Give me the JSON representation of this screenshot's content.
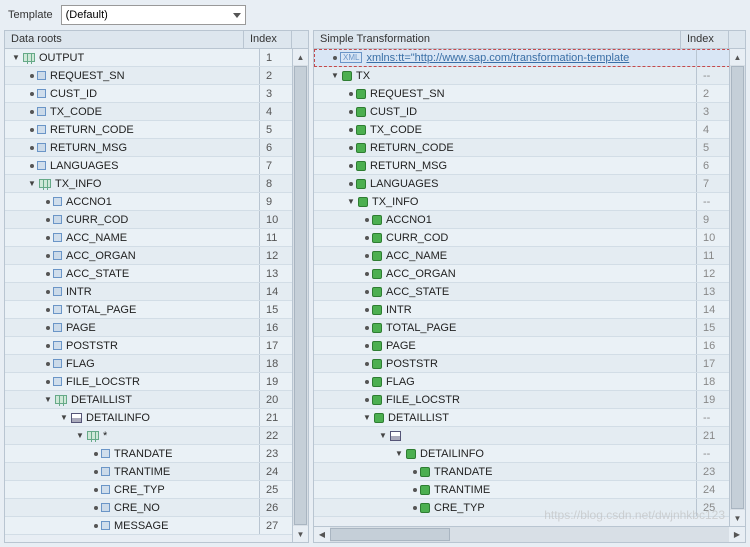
{
  "toolbar": {
    "template_label": "Template",
    "template_value": "(Default)"
  },
  "leftPanel": {
    "header_name": "Data roots",
    "header_index": "Index",
    "rows": [
      {
        "d": 0,
        "t": "▼",
        "i": "link",
        "l": "OUTPUT",
        "x": "1"
      },
      {
        "d": 1,
        "b": 1,
        "i": "sq",
        "c": "#6a95c7",
        "l": "REQUEST_SN",
        "x": "2"
      },
      {
        "d": 1,
        "b": 1,
        "i": "sq",
        "c": "#6a95c7",
        "l": "CUST_ID",
        "x": "3"
      },
      {
        "d": 1,
        "b": 1,
        "i": "sq",
        "c": "#6a95c7",
        "l": "TX_CODE",
        "x": "4"
      },
      {
        "d": 1,
        "b": 1,
        "i": "sq",
        "c": "#6a95c7",
        "l": "RETURN_CODE",
        "x": "5"
      },
      {
        "d": 1,
        "b": 1,
        "i": "sq",
        "c": "#6a95c7",
        "l": "RETURN_MSG",
        "x": "6"
      },
      {
        "d": 1,
        "b": 1,
        "i": "sq",
        "c": "#6a95c7",
        "l": "LANGUAGES",
        "x": "7"
      },
      {
        "d": 1,
        "t": "▼",
        "i": "link",
        "l": "TX_INFO",
        "x": "8"
      },
      {
        "d": 2,
        "b": 1,
        "i": "sq",
        "c": "#6a95c7",
        "l": "ACCNO1",
        "x": "9"
      },
      {
        "d": 2,
        "b": 1,
        "i": "sq",
        "c": "#6a95c7",
        "l": "CURR_COD",
        "x": "10"
      },
      {
        "d": 2,
        "b": 1,
        "i": "sq",
        "c": "#6a95c7",
        "l": "ACC_NAME",
        "x": "11"
      },
      {
        "d": 2,
        "b": 1,
        "i": "sq",
        "c": "#6a95c7",
        "l": "ACC_ORGAN",
        "x": "12"
      },
      {
        "d": 2,
        "b": 1,
        "i": "sq",
        "c": "#6a95c7",
        "l": "ACC_STATE",
        "x": "13"
      },
      {
        "d": 2,
        "b": 1,
        "i": "sq",
        "c": "#6a95c7",
        "l": "INTR",
        "x": "14"
      },
      {
        "d": 2,
        "b": 1,
        "i": "sq",
        "c": "#6a95c7",
        "l": "TOTAL_PAGE",
        "x": "15"
      },
      {
        "d": 2,
        "b": 1,
        "i": "sq",
        "c": "#6a95c7",
        "l": "PAGE",
        "x": "16"
      },
      {
        "d": 2,
        "b": 1,
        "i": "sq",
        "c": "#6a95c7",
        "l": "POSTSTR",
        "x": "17"
      },
      {
        "d": 2,
        "b": 1,
        "i": "sq",
        "c": "#6a95c7",
        "l": "FLAG",
        "x": "18"
      },
      {
        "d": 2,
        "b": 1,
        "i": "sq",
        "c": "#6a95c7",
        "l": "FILE_LOCSTR",
        "x": "19"
      },
      {
        "d": 2,
        "t": "▼",
        "i": "link",
        "l": "DETAILLIST",
        "x": "20"
      },
      {
        "d": 3,
        "t": "▼",
        "i": "table",
        "l": "DETAILINFO",
        "x": "21"
      },
      {
        "d": 4,
        "t": "▼",
        "i": "link",
        "l": "*",
        "x": "22"
      },
      {
        "d": 5,
        "b": 1,
        "i": "sq",
        "c": "#6a95c7",
        "l": "TRANDATE",
        "x": "23"
      },
      {
        "d": 5,
        "b": 1,
        "i": "sq",
        "c": "#6a95c7",
        "l": "TRANTIME",
        "x": "24"
      },
      {
        "d": 5,
        "b": 1,
        "i": "sq",
        "c": "#6a95c7",
        "l": "CRE_TYP",
        "x": "25"
      },
      {
        "d": 5,
        "b": 1,
        "i": "sq",
        "c": "#6a95c7",
        "l": "CRE_NO",
        "x": "26"
      },
      {
        "d": 5,
        "b": 1,
        "i": "sq",
        "c": "#6a95c7",
        "l": "MESSAGE",
        "x": "27"
      }
    ]
  },
  "rightPanel": {
    "header_name": "Simple Transformation",
    "header_index": "Index",
    "rows": [
      {
        "d": 0,
        "b": 1,
        "i": "xml",
        "l": "xmlns:tt=\"http://www.sap.com/transformation-template",
        "sel": 1,
        "x": ""
      },
      {
        "d": 0,
        "t": "▼",
        "i": "green",
        "l": "TX",
        "x": "--"
      },
      {
        "d": 1,
        "b": 1,
        "i": "green",
        "l": "REQUEST_SN",
        "x": "2"
      },
      {
        "d": 1,
        "b": 1,
        "i": "green",
        "l": "CUST_ID",
        "x": "3"
      },
      {
        "d": 1,
        "b": 1,
        "i": "green",
        "l": "TX_CODE",
        "x": "4"
      },
      {
        "d": 1,
        "b": 1,
        "i": "green",
        "l": "RETURN_CODE",
        "x": "5"
      },
      {
        "d": 1,
        "b": 1,
        "i": "green",
        "l": "RETURN_MSG",
        "x": "6"
      },
      {
        "d": 1,
        "b": 1,
        "i": "green",
        "l": "LANGUAGES",
        "x": "7"
      },
      {
        "d": 1,
        "t": "▼",
        "i": "green",
        "l": "TX_INFO",
        "x": "--"
      },
      {
        "d": 2,
        "b": 1,
        "i": "green",
        "l": "ACCNO1",
        "x": "9"
      },
      {
        "d": 2,
        "b": 1,
        "i": "green",
        "l": "CURR_COD",
        "x": "10"
      },
      {
        "d": 2,
        "b": 1,
        "i": "green",
        "l": "ACC_NAME",
        "x": "11"
      },
      {
        "d": 2,
        "b": 1,
        "i": "green",
        "l": "ACC_ORGAN",
        "x": "12"
      },
      {
        "d": 2,
        "b": 1,
        "i": "green",
        "l": "ACC_STATE",
        "x": "13"
      },
      {
        "d": 2,
        "b": 1,
        "i": "green",
        "l": "INTR",
        "x": "14"
      },
      {
        "d": 2,
        "b": 1,
        "i": "green",
        "l": "TOTAL_PAGE",
        "x": "15"
      },
      {
        "d": 2,
        "b": 1,
        "i": "green",
        "l": "PAGE",
        "x": "16"
      },
      {
        "d": 2,
        "b": 1,
        "i": "green",
        "l": "POSTSTR",
        "x": "17"
      },
      {
        "d": 2,
        "b": 1,
        "i": "green",
        "l": "FLAG",
        "x": "18"
      },
      {
        "d": 2,
        "b": 1,
        "i": "green",
        "l": "FILE_LOCSTR",
        "x": "19"
      },
      {
        "d": 2,
        "t": "▼",
        "i": "green",
        "l": "DETAILLIST",
        "x": "--"
      },
      {
        "d": 3,
        "t": "▼",
        "i": "table",
        "l": "",
        "x": "21"
      },
      {
        "d": 4,
        "t": "▼",
        "i": "green",
        "l": "DETAILINFO",
        "x": "--"
      },
      {
        "d": 5,
        "b": 1,
        "i": "green",
        "l": "TRANDATE",
        "x": "23"
      },
      {
        "d": 5,
        "b": 1,
        "i": "green",
        "l": "TRANTIME",
        "x": "24"
      },
      {
        "d": 5,
        "b": 1,
        "i": "green",
        "l": "CRE_TYP",
        "x": "25"
      }
    ]
  },
  "watermark": "https://blog.csdn.net/dwjnhkbc123"
}
